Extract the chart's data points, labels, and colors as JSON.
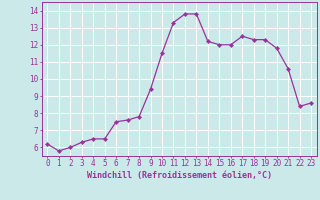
{
  "x": [
    0,
    1,
    2,
    3,
    4,
    5,
    6,
    7,
    8,
    9,
    10,
    11,
    12,
    13,
    14,
    15,
    16,
    17,
    18,
    19,
    20,
    21,
    22,
    23
  ],
  "y": [
    6.2,
    5.8,
    6.0,
    6.3,
    6.5,
    6.5,
    7.5,
    7.6,
    7.8,
    9.4,
    11.5,
    13.3,
    13.8,
    13.8,
    12.2,
    12.0,
    12.0,
    12.5,
    12.3,
    12.3,
    11.8,
    10.6,
    8.4,
    8.6
  ],
  "line_color": "#993399",
  "marker": "D",
  "markersize": 2.2,
  "linewidth": 0.9,
  "bg_color": "#cce9e9",
  "grid_color": "#ffffff",
  "xlabel": "Windchill (Refroidissement éolien,°C)",
  "xlabel_color": "#993399",
  "xlabel_fontsize": 6.0,
  "tick_color": "#993399",
  "tick_fontsize": 5.5,
  "ytick_labels": [
    "6",
    "7",
    "8",
    "9",
    "10",
    "11",
    "12",
    "13",
    "14"
  ],
  "ytick_values": [
    6,
    7,
    8,
    9,
    10,
    11,
    12,
    13,
    14
  ],
  "xtick_values": [
    0,
    1,
    2,
    3,
    4,
    5,
    6,
    7,
    8,
    9,
    10,
    11,
    12,
    13,
    14,
    15,
    16,
    17,
    18,
    19,
    20,
    21,
    22,
    23
  ],
  "ylim": [
    5.5,
    14.5
  ],
  "xlim": [
    -0.5,
    23.5
  ]
}
